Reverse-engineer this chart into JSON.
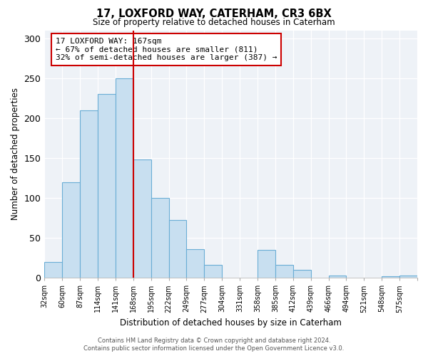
{
  "title": "17, LOXFORD WAY, CATERHAM, CR3 6BX",
  "subtitle": "Size of property relative to detached houses in Caterham",
  "xlabel": "Distribution of detached houses by size in Caterham",
  "ylabel": "Number of detached properties",
  "categories": [
    "32sqm",
    "60sqm",
    "87sqm",
    "114sqm",
    "141sqm",
    "168sqm",
    "195sqm",
    "222sqm",
    "249sqm",
    "277sqm",
    "304sqm",
    "331sqm",
    "358sqm",
    "385sqm",
    "412sqm",
    "439sqm",
    "466sqm",
    "494sqm",
    "521sqm",
    "548sqm",
    "575sqm"
  ],
  "values": [
    20,
    120,
    210,
    230,
    250,
    148,
    100,
    72,
    36,
    16,
    0,
    0,
    35,
    16,
    10,
    0,
    3,
    0,
    0,
    2,
    3
  ],
  "bar_color": "#c8dff0",
  "bar_edge_color": "#6aadd5",
  "property_line_x": 5,
  "property_line_color": "#cc0000",
  "ylim": [
    0,
    310
  ],
  "yticks": [
    0,
    50,
    100,
    150,
    200,
    250,
    300
  ],
  "annotation_title": "17 LOXFORD WAY: 167sqm",
  "annotation_line1": "← 67% of detached houses are smaller (811)",
  "annotation_line2": "32% of semi-detached houses are larger (387) →",
  "annotation_box_color": "#ffffff",
  "annotation_box_edge": "#cc0000",
  "footer1": "Contains HM Land Registry data © Crown copyright and database right 2024.",
  "footer2": "Contains public sector information licensed under the Open Government Licence v3.0.",
  "bg_color": "#eef2f7"
}
